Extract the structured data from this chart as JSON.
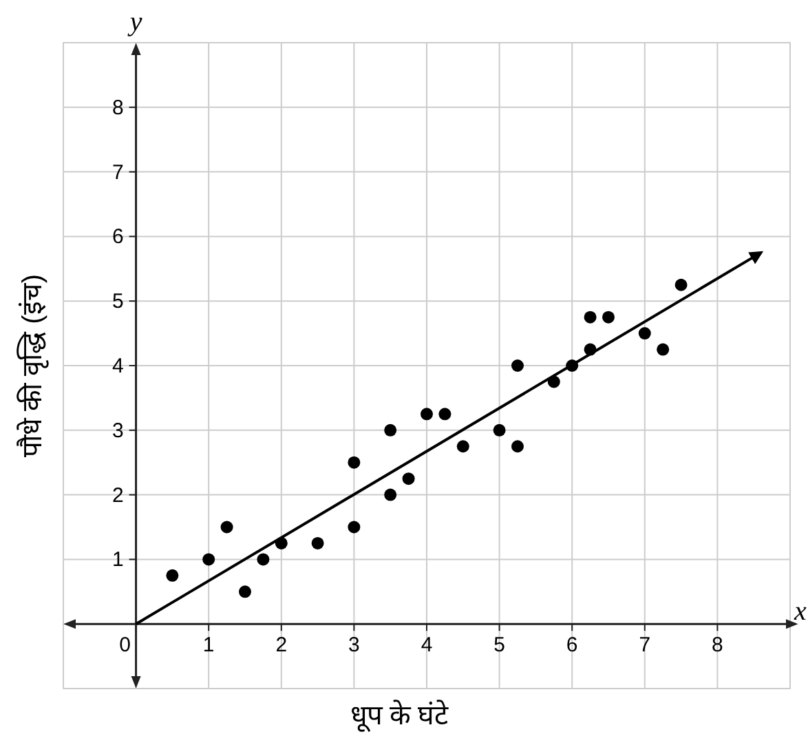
{
  "chart_data": {
    "type": "scatter",
    "xlabel": "धूप के घंटे",
    "ylabel": "पौधे की वृद्धि (इंच)",
    "annotations": [
      "x",
      "y"
    ],
    "xlim": [
      -1,
      9
    ],
    "ylim": [
      -1,
      9
    ],
    "xticks": [
      0,
      1,
      2,
      3,
      4,
      5,
      6,
      7,
      8
    ],
    "yticks": [
      1,
      2,
      3,
      4,
      5,
      6,
      7,
      8
    ],
    "grid": true,
    "series": [
      {
        "color": "#000000",
        "marker": "circle",
        "x": [
          0.5,
          1,
          1.25,
          1.5,
          1.75,
          2,
          2.5,
          3,
          3,
          3.5,
          3.5,
          3.75,
          4,
          4.25,
          4.5,
          5,
          5.25,
          5.25,
          5.75,
          6,
          6.25,
          6.25,
          6.5,
          7,
          7.25,
          7.5
        ],
        "values": [
          0.75,
          1,
          1.5,
          0.5,
          1,
          1.25,
          1.25,
          2.5,
          1.5,
          3,
          2,
          2.25,
          3.25,
          3.25,
          2.75,
          3,
          4,
          2.75,
          3.75,
          4,
          4.75,
          4.25,
          4.75,
          4.5,
          4.25,
          5.25
        ]
      },
      {
        "type": "line",
        "color": "#000000",
        "marker": "none",
        "x": [
          0,
          8.6
        ],
        "values": [
          0,
          5.75
        ]
      }
    ]
  }
}
